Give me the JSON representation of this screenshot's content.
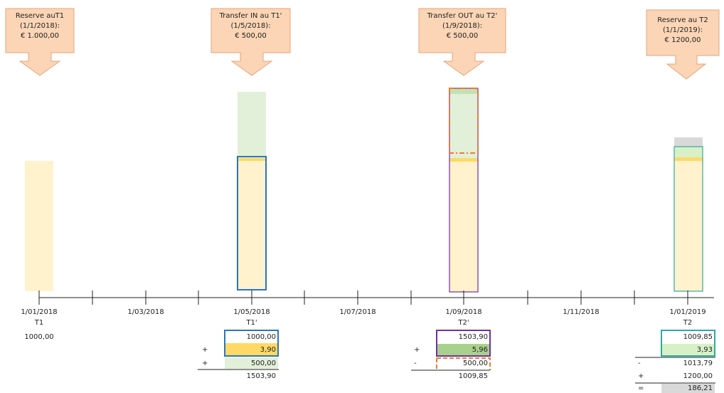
{
  "callouts": [
    {
      "line1": "Reserve auT1",
      "line2": "(1/1/2018):",
      "line3": "€ 1.000,00"
    },
    {
      "line1": "Transfer IN au T1'",
      "line2": "(1/5/2018):",
      "line3": "€ 500,00"
    },
    {
      "line1": "Transfer OUT au T2'",
      "line2": "(1/9/2018):",
      "line3": "€ 500,00"
    },
    {
      "line1": "Reserve au T2",
      "line2": "(1/1/2019):",
      "line3": "€ 1200,00"
    }
  ],
  "axis": {
    "dates": [
      "1/01/2018",
      "1/03/2018",
      "1/05/2018",
      "1/07/2018",
      "1/09/2018",
      "1/11/2018",
      "1/01/2019"
    ],
    "points": [
      "T1",
      "T1'",
      "T2'",
      "T2"
    ]
  },
  "calc": {
    "t1": {
      "value": "1000,00"
    },
    "t1p": {
      "v1": "1000,00",
      "op2": "+",
      "v2": "3,90",
      "op3": "+",
      "v3": "500,00",
      "total": "1503,90"
    },
    "t2p": {
      "v1": "1503,90",
      "op2": "+",
      "v2": "5,96",
      "op3": "-",
      "v3": "500,00",
      "total": "1009,85"
    },
    "t2": {
      "v1": "1009,85",
      "v2": "3,93",
      "op3": "-",
      "v3": "1013,79",
      "op4": "+",
      "v4": "1200,00",
      "op5": "=",
      "v5": "186,21"
    }
  },
  "colors": {
    "callout_fill": "#fbd5b5",
    "callout_stroke": "#e6a57e",
    "reserve": "#fff2cc",
    "interest": "#ffd966",
    "transfer": "#e2efd9",
    "frame_t1p": "#2e75b6",
    "frame_t2p": "#7030a0",
    "frame_t2": "#2eaba0",
    "dashed": "#ed7d31",
    "grey": "#d9d9d9"
  }
}
